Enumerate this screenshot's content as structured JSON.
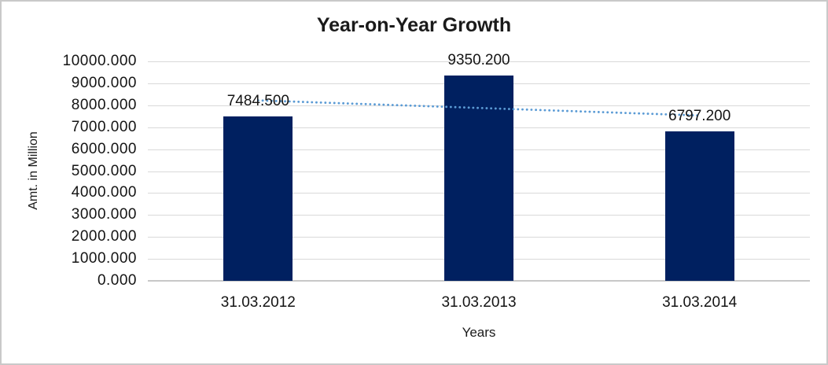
{
  "frame": {
    "background_color": "#ffffff",
    "border_color": "#c9c9c9"
  },
  "chart_data": {
    "type": "bar",
    "title": "Year-on-Year Growth",
    "xlabel": "Years",
    "ylabel": "Amt. in Million",
    "categories": [
      "31.03.2012",
      "31.03.2013",
      "31.03.2014"
    ],
    "values": [
      7484.5,
      9350.2,
      6797.2
    ],
    "value_labels": [
      "7484.500",
      "9350.200",
      "6797.200"
    ],
    "ylim": [
      0,
      10000
    ],
    "ytick_step": 1000,
    "ytick_labels": [
      "0.000",
      "1000.000",
      "2000.000",
      "3000.000",
      "4000.000",
      "5000.000",
      "6000.000",
      "7000.000",
      "8000.000",
      "9000.000",
      "10000.000"
    ],
    "grid": true,
    "legend": "none",
    "bar_color": "#002060",
    "gridline_color": "#d9d9d9",
    "trendline": {
      "type": "linear",
      "style": "dotted",
      "color": "#5b9bd5"
    }
  }
}
